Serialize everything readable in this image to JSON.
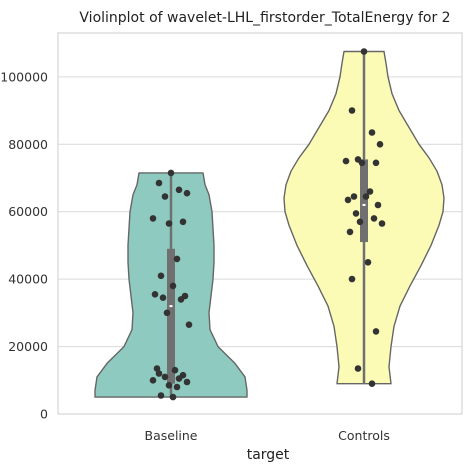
{
  "chart_data": {
    "type": "violin",
    "title": "Violinplot of wavelet-LHL_firstorder_TotalEnergy for 2",
    "xlabel": "target",
    "ylabel": "",
    "categories": [
      "Baseline",
      "Controls"
    ],
    "yticks": [
      0,
      20000,
      40000,
      60000,
      80000,
      100000
    ],
    "ytick_labels": [
      "0",
      "20000",
      "40000",
      "60000",
      "80000",
      "100000"
    ],
    "ylim": [
      0,
      113000
    ],
    "grid": true,
    "colors": {
      "Baseline": "#8fcac0",
      "Controls": "#fbfbb6",
      "outline": "#666666",
      "points": "#333333",
      "box": "#707070"
    },
    "series": [
      {
        "category": "Baseline",
        "min": 5000,
        "max": 71500,
        "q1": 9000,
        "median": 32000,
        "q3": 49000,
        "points": [
          71500,
          68500,
          66500,
          65500,
          64500,
          58000,
          57000,
          56500,
          46000,
          41000,
          38000,
          35500,
          35000,
          34500,
          34000,
          30000,
          26500,
          13500,
          13000,
          12000,
          11500,
          11000,
          10500,
          10000,
          9500,
          8500,
          8000,
          5500,
          5000
        ]
      },
      {
        "category": "Controls",
        "min": 9000,
        "max": 107500,
        "q1": 51000,
        "median": 62000,
        "q3": 75500,
        "points": [
          107500,
          90000,
          83500,
          80000,
          75500,
          75000,
          74500,
          74500,
          66000,
          64500,
          64500,
          63500,
          62000,
          59500,
          58000,
          57000,
          56500,
          54000,
          45000,
          40000,
          24500,
          13500,
          9000
        ]
      }
    ]
  }
}
